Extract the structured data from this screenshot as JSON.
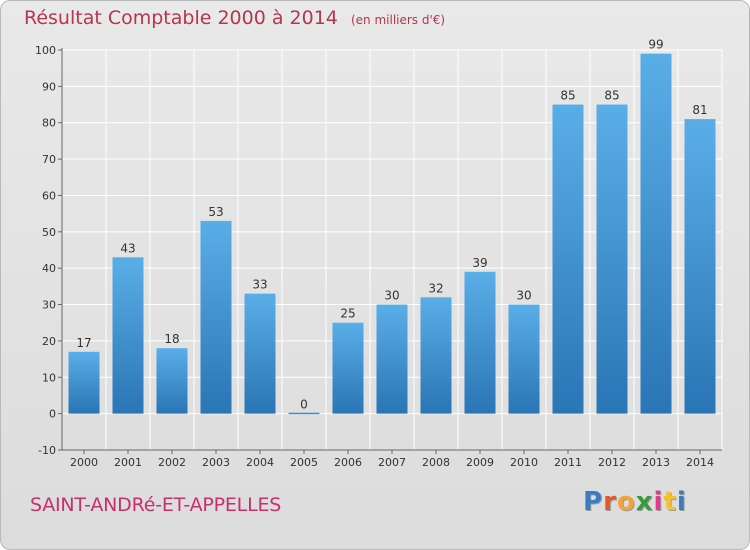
{
  "header": {
    "title": "Résultat Comptable 2000 à 2014",
    "subtitle": "(en milliers d'€)"
  },
  "footer": {
    "commune": "SAINT-ANDRé-ET-APPELLES",
    "logo_text": "Proxiti",
    "logo_colors": [
      "#3a7cc4",
      "#e4572e",
      "#f2a33a",
      "#3a9a3a",
      "#e23b8c",
      "#f2c230",
      "#3a7cc4"
    ]
  },
  "colors": {
    "bar_top": "#5aaee8",
    "bar_bottom": "#2a75b5",
    "title": "#b5364e",
    "grid": "#ffffff"
  },
  "chart_data": {
    "type": "bar",
    "title": "Résultat Comptable 2000 à 2014",
    "subtitle": "(en milliers d'€)",
    "categories": [
      "2000",
      "2001",
      "2002",
      "2003",
      "2004",
      "2005",
      "2006",
      "2007",
      "2008",
      "2009",
      "2010",
      "2011",
      "2012",
      "2013",
      "2014"
    ],
    "values": [
      17,
      43,
      18,
      53,
      33,
      0,
      25,
      30,
      32,
      39,
      30,
      85,
      85,
      99,
      81
    ],
    "ylim": [
      -10,
      100
    ],
    "yticks": [
      -10,
      0,
      10,
      20,
      30,
      40,
      50,
      60,
      70,
      80,
      90,
      100
    ],
    "grid": true,
    "data_labels": true
  }
}
